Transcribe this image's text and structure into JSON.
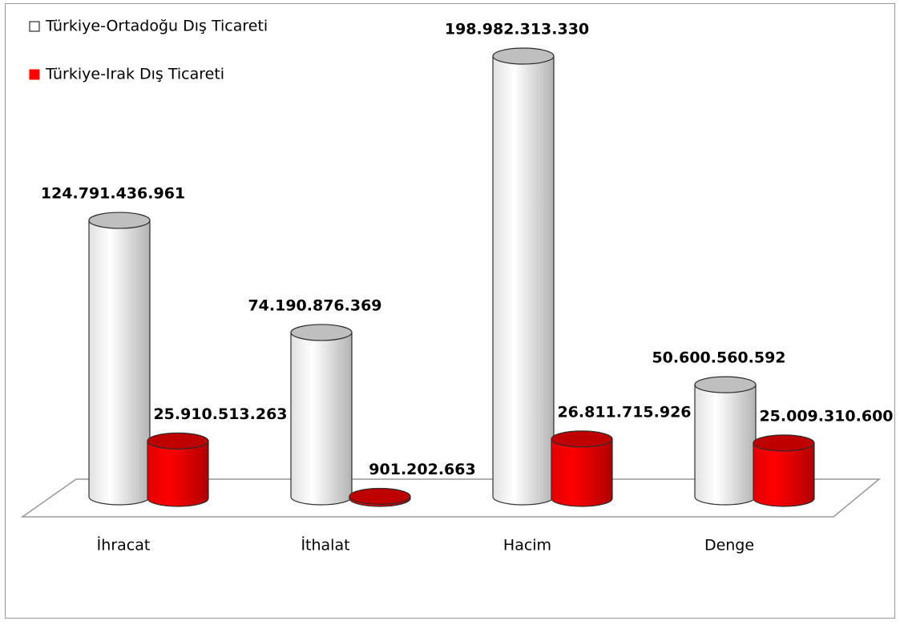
{
  "chart_data": {
    "type": "bar3d",
    "categories": [
      "İhracat",
      "İthalat",
      "Hacim",
      "Denge"
    ],
    "series": [
      {
        "name": "Türkiye-Ortadoğu Dış Ticareti",
        "color": "#ffffff",
        "values": [
          124791436961,
          74190876369,
          198982313330,
          50600560592
        ],
        "value_labels": [
          "124.791.436.961",
          "74.190.876.369",
          "198.982.313.330",
          "50.600.560.592"
        ]
      },
      {
        "name": "Türkiye-Irak Dış Ticareti",
        "color": "#ff0000",
        "values": [
          25910513263,
          901202663,
          26811715926,
          25009310600
        ],
        "value_labels": [
          "25.910.513.263",
          "901.202.663",
          "26.811.715.926",
          "25.009.310.600"
        ]
      }
    ],
    "legend": "top-left"
  }
}
